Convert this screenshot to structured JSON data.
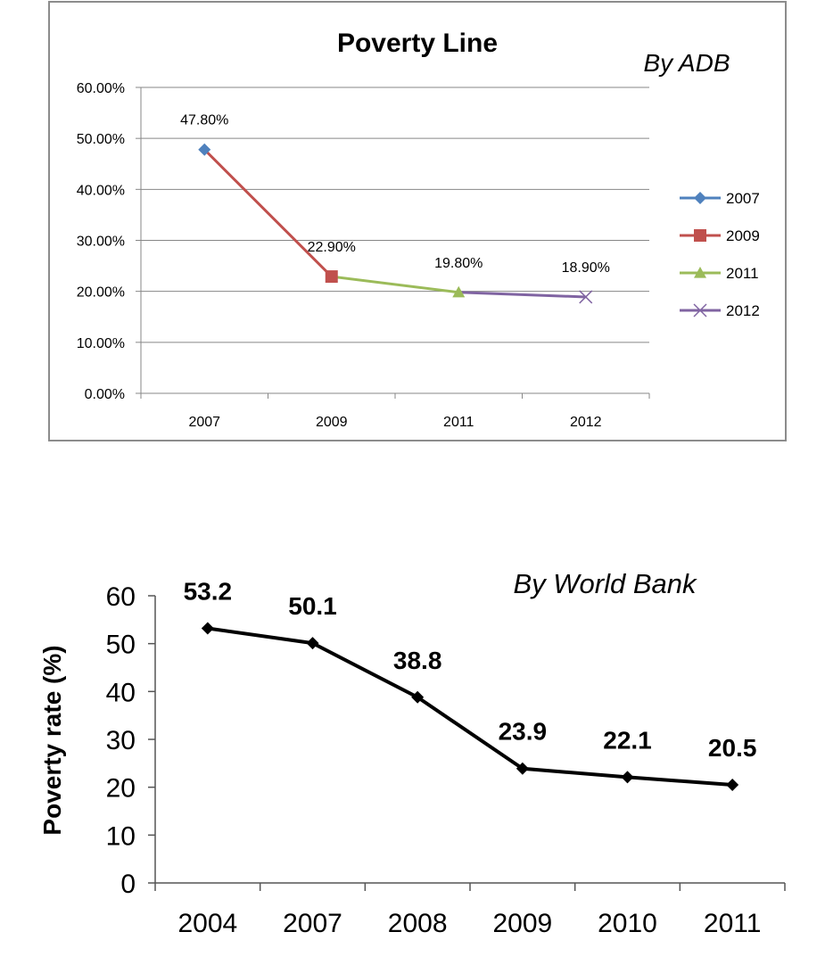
{
  "chart_data": [
    {
      "type": "line",
      "title": "Poverty Line",
      "annotation": "By ADB",
      "categories": [
        "2007",
        "2009",
        "2011",
        "2012"
      ],
      "y_tick_labels": [
        "0.00%",
        "10.00%",
        "20.00%",
        "30.00%",
        "40.00%",
        "50.00%",
        "60.00%"
      ],
      "ylim": [
        0,
        60
      ],
      "grid": true,
      "legend_position": "right",
      "segments": [
        {
          "from": 0,
          "to": 1,
          "color": "#c0504d"
        },
        {
          "from": 1,
          "to": 2,
          "color": "#9bbb59"
        },
        {
          "from": 2,
          "to": 3,
          "color": "#8064a2"
        }
      ],
      "series": [
        {
          "name": "2007",
          "x": "2007",
          "y": 47.8,
          "label": "47.80%",
          "color": "#4f81bd",
          "marker": "diamond"
        },
        {
          "name": "2009",
          "x": "2009",
          "y": 22.9,
          "label": "22.90%",
          "color": "#c0504d",
          "marker": "square"
        },
        {
          "name": "2011",
          "x": "2011",
          "y": 19.8,
          "label": "19.80%",
          "color": "#9bbb59",
          "marker": "triangle"
        },
        {
          "name": "2012",
          "x": "2012",
          "y": 18.9,
          "label": "18.90%",
          "color": "#8064a2",
          "marker": "x"
        }
      ]
    },
    {
      "type": "line",
      "title": "",
      "annotation": "By World Bank",
      "ylabel": "Poverty rate (%)",
      "categories": [
        "2004",
        "2007",
        "2008",
        "2009",
        "2010",
        "2011"
      ],
      "y_tick_labels": [
        "0",
        "10",
        "20",
        "30",
        "40",
        "50",
        "60"
      ],
      "ylim": [
        0,
        60
      ],
      "grid": false,
      "series": [
        {
          "name": "",
          "color": "#000000",
          "marker": "diamond",
          "values": [
            53.2,
            50.1,
            38.8,
            23.9,
            22.1,
            20.5
          ],
          "labels": [
            "53.2",
            "50.1",
            "38.8",
            "23.9",
            "22.1",
            "20.5"
          ]
        }
      ]
    }
  ]
}
